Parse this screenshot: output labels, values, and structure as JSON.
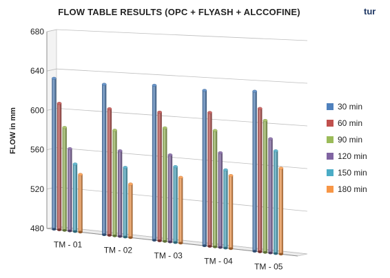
{
  "chart_data": {
    "type": "bar",
    "title": "FLOW TABLE RESULTS (OPC + FLYASH + ALCCOFINE)",
    "xlabel": "",
    "ylabel": "FLOW in mm",
    "ylim": [
      480,
      680
    ],
    "yticks": [
      480,
      520,
      560,
      600,
      640,
      680
    ],
    "categories": [
      "TM - 01",
      "TM - 02",
      "TM - 03",
      "TM - 04",
      "TM - 05"
    ],
    "series": [
      {
        "name": "30 min",
        "color": "#4f81bd",
        "values": [
          633,
          630,
          632,
          630,
          632
        ]
      },
      {
        "name": "60 min",
        "color": "#c0504d",
        "values": [
          608,
          606,
          606,
          609,
          616
        ]
      },
      {
        "name": "90 min",
        "color": "#9bbb59",
        "values": [
          584,
          585,
          591,
          592,
          605
        ]
      },
      {
        "name": "120 min",
        "color": "#8064a2",
        "values": [
          563,
          565,
          565,
          571,
          588
        ]
      },
      {
        "name": "150 min",
        "color": "#4bacc6",
        "values": [
          548,
          549,
          554,
          555,
          577
        ]
      },
      {
        "name": "180 min",
        "color": "#f79646",
        "values": [
          538,
          533,
          544,
          550,
          561
        ]
      }
    ],
    "legend_position": "right",
    "grid": true
  },
  "corner_text": "tur"
}
